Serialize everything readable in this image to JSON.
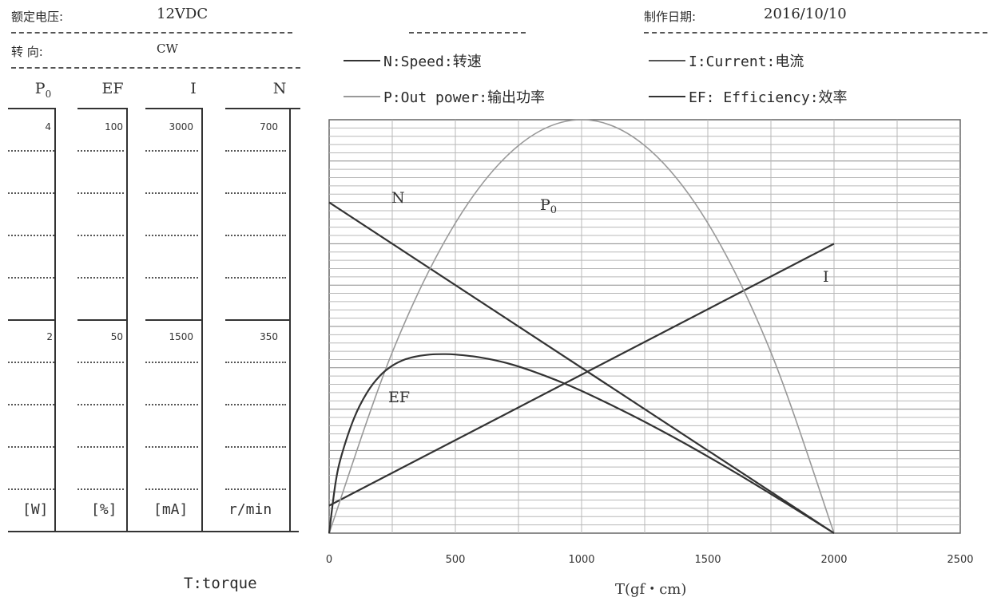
{
  "header": {
    "rated_voltage_label": "额定电压:",
    "rated_voltage_value": "12VDC",
    "direction_label": "转      向:",
    "direction_value": "CW",
    "date_label": "制作日期:",
    "date_value": "2016/10/10"
  },
  "legend": {
    "n": "N:Speed:转速",
    "p": "P:Out power:输出功率",
    "i": "I:Current:电流",
    "ef": "EF: Efficiency:效率"
  },
  "columns": {
    "po": {
      "header_main": "P",
      "header_sub": "0",
      "top": "4",
      "mid": "2",
      "unit": "[W]"
    },
    "ef": {
      "header": "EF",
      "top": "100",
      "mid": "50",
      "unit": "[%]"
    },
    "i": {
      "header": "I",
      "top": "3000",
      "mid": "1500",
      "unit": "[mA]"
    },
    "n": {
      "header": "N",
      "top": "700",
      "mid": "350",
      "unit": "r/min"
    }
  },
  "torque_label": "T:torque",
  "chart_data": {
    "type": "line",
    "xlabel": "T(gf・cm)",
    "xlim": [
      0,
      2500
    ],
    "x_ticks": [
      "0",
      "500",
      "1000",
      "1500",
      "2000",
      "2500"
    ],
    "series": [
      {
        "name": "N",
        "label": "N",
        "unit": "r/min",
        "color": "#333333",
        "x": [
          0,
          2000
        ],
        "y": [
          560,
          0
        ]
      },
      {
        "name": "I",
        "label": "I",
        "unit": "mA",
        "color": "#333333",
        "x": [
          0,
          2000
        ],
        "y": [
          200,
          2100
        ]
      },
      {
        "name": "Po",
        "label": "P0",
        "unit": "W",
        "color": "#999999",
        "x": [
          0,
          250,
          500,
          750,
          1000,
          1250,
          1500,
          1750,
          2000
        ],
        "y": [
          0,
          1.75,
          3.0,
          3.75,
          4.0,
          3.75,
          3.0,
          1.75,
          0
        ]
      },
      {
        "name": "EF",
        "label": "EF",
        "unit": "%",
        "color": "#333333",
        "x": [
          0,
          25,
          50,
          100,
          150,
          200,
          250,
          300,
          350,
          400,
          450,
          500,
          600,
          700,
          800,
          900,
          1000,
          1200,
          1400,
          1600,
          1800,
          2000
        ],
        "y": [
          0,
          12,
          19,
          28,
          34,
          38,
          40.5,
          42,
          42.8,
          43.2,
          43.3,
          43.2,
          42.5,
          41.2,
          39.3,
          37.0,
          34.4,
          28.5,
          22.0,
          15.0,
          7.6,
          0
        ]
      }
    ]
  }
}
